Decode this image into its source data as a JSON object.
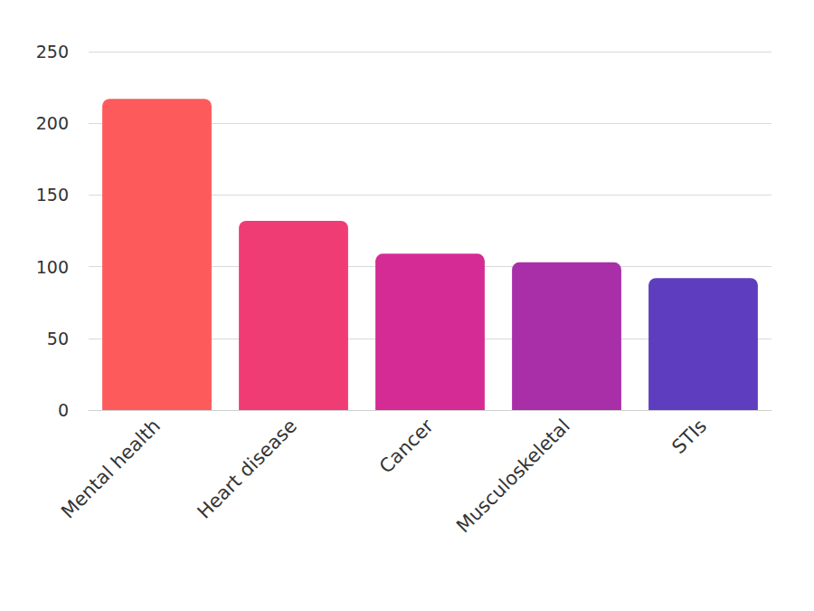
{
  "chart_data": {
    "type": "bar",
    "categories": [
      "Mental health",
      "Heart disease",
      "Cancer",
      "Musculoskeletal",
      "STIs"
    ],
    "values": [
      217,
      132,
      109,
      103,
      92
    ],
    "colors": [
      "#fd5b5b",
      "#f03c74",
      "#d52b94",
      "#a92fa9",
      "#5e3ebf"
    ],
    "ylim": [
      0,
      250
    ],
    "yticks": [
      0,
      50,
      100,
      150,
      200,
      250
    ],
    "grid": true
  }
}
